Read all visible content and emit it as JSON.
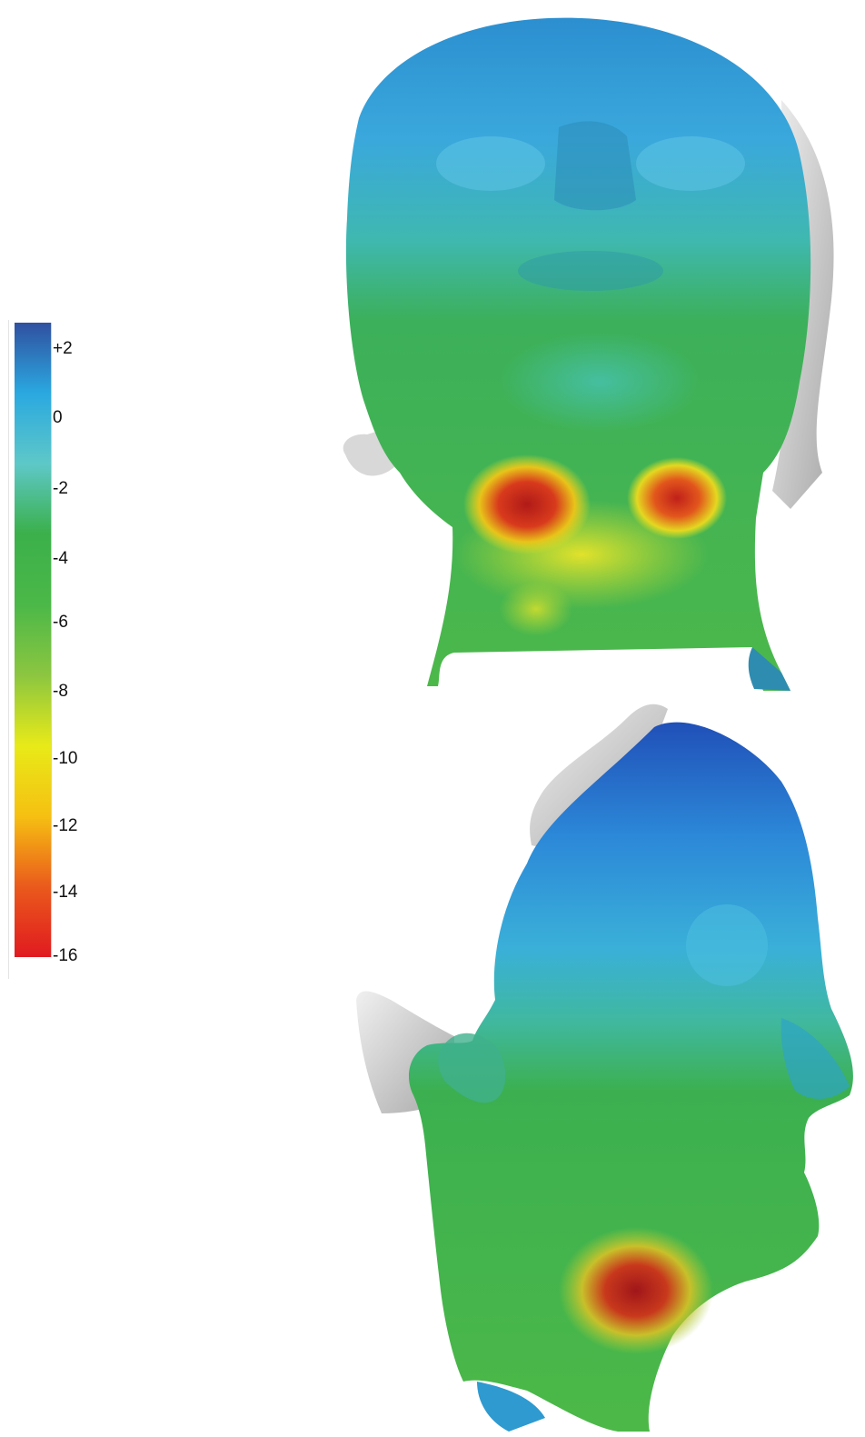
{
  "colorbar": {
    "labels": [
      "+2",
      "0",
      "-2",
      "-4",
      "-6",
      "-8",
      "-10",
      "-12",
      "-14",
      "-16"
    ],
    "stops": [
      {
        "value": 2,
        "color": "#3050a0"
      },
      {
        "value": 0,
        "color": "#2aa8e0"
      },
      {
        "value": -2,
        "color": "#5ec8c8"
      },
      {
        "value": -4,
        "color": "#3bb04a"
      },
      {
        "value": -6,
        "color": "#4bb848"
      },
      {
        "value": -8,
        "color": "#8cc640"
      },
      {
        "value": -10,
        "color": "#e8ea18"
      },
      {
        "value": -12,
        "color": "#f6c012"
      },
      {
        "value": -14,
        "color": "#ea5a1c"
      },
      {
        "value": -16,
        "color": "#e01a20"
      }
    ]
  },
  "views": [
    {
      "name": "frontal-view",
      "description_icon": "head-scan-frontal-icon"
    },
    {
      "name": "lateral-view",
      "description_icon": "head-scan-lateral-icon"
    }
  ]
}
